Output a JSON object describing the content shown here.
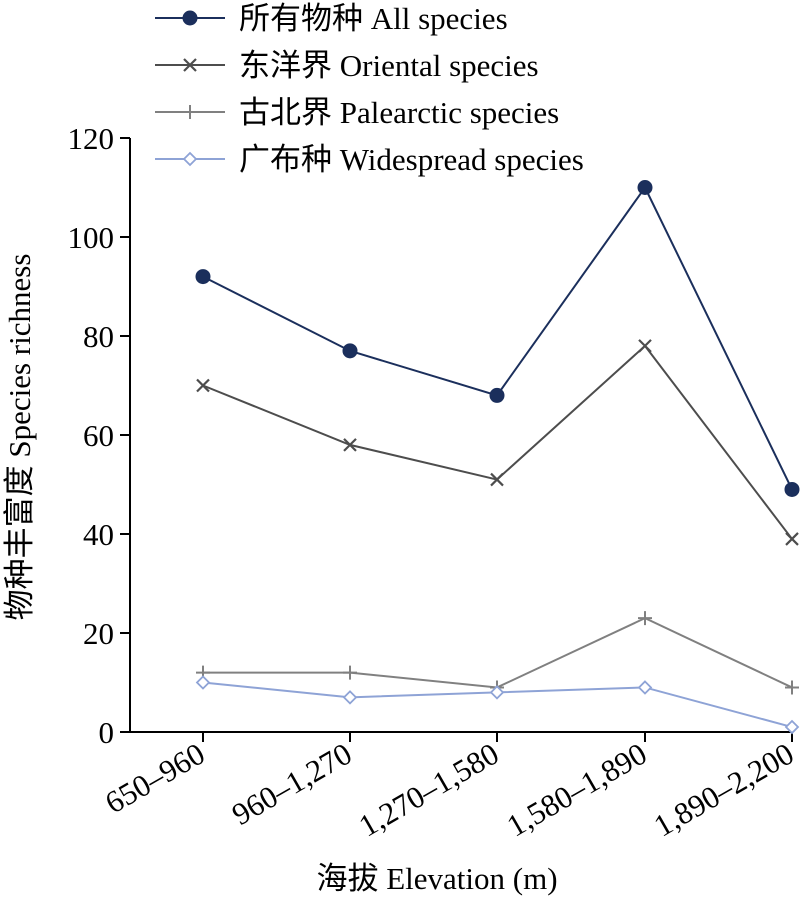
{
  "chart_data": {
    "type": "line",
    "title": "",
    "xlabel": "海拔 Elevation (m)",
    "ylabel": "物种丰富度 Species richness",
    "categories": [
      "650–960",
      "960–1,270",
      "1,270–1,580",
      "1,580–1,890",
      "1,890–2,200"
    ],
    "ylim": [
      0,
      120
    ],
    "yticks": [
      "0",
      "20",
      "40",
      "60",
      "80",
      "100",
      "120"
    ],
    "grid": false,
    "legend_position": "top-left",
    "series": [
      {
        "name": "所有物种 All species",
        "values": [
          92,
          77,
          68,
          110,
          49
        ],
        "color": "#1b2f5c",
        "marker": "circle"
      },
      {
        "name": "东洋界 Oriental species",
        "values": [
          70,
          58,
          51,
          78,
          39
        ],
        "color": "#4d4d4d",
        "marker": "x"
      },
      {
        "name": "古北界 Palearctic species",
        "values": [
          12,
          12,
          9,
          23,
          9
        ],
        "color": "#808080",
        "marker": "plus"
      },
      {
        "name": "广布种 Widespread species",
        "values": [
          10,
          7,
          8,
          9,
          1
        ],
        "color": "#8ea3d6",
        "marker": "diamond"
      }
    ]
  }
}
